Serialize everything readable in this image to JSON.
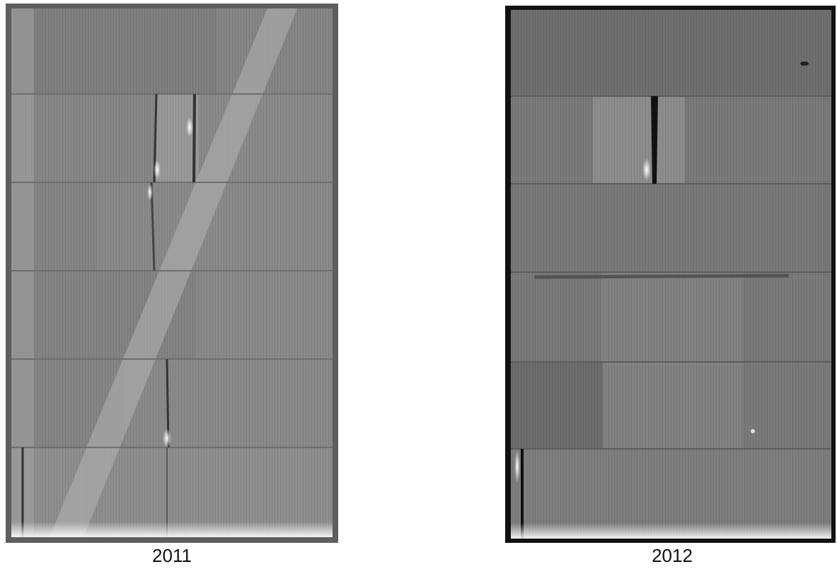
{
  "images": [
    {
      "caption": "2011"
    },
    {
      "caption": "2012"
    }
  ]
}
